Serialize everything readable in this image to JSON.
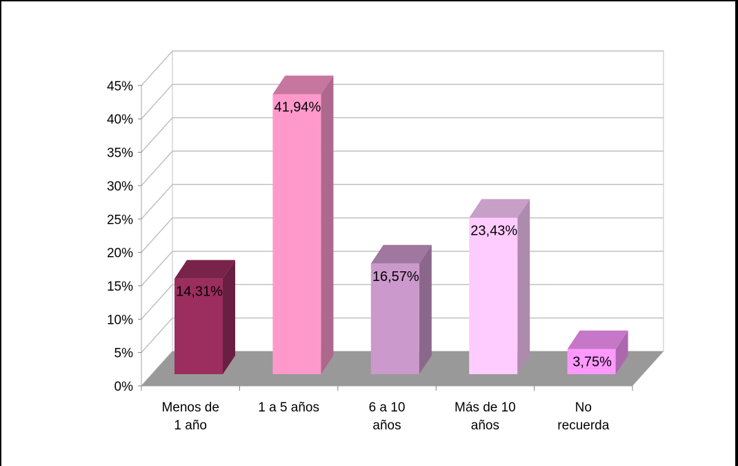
{
  "chart_data": {
    "type": "bar",
    "title": "",
    "xlabel": "",
    "ylabel": "",
    "ylim": [
      0,
      45
    ],
    "y_ticks": [
      "0%",
      "5%",
      "10%",
      "15%",
      "20%",
      "25%",
      "30%",
      "35%",
      "40%",
      "45%"
    ],
    "grid": true,
    "three_d": true,
    "categories": [
      [
        "Menos de",
        "1 año"
      ],
      [
        "1 a 5 años"
      ],
      [
        "6 a 10",
        "años"
      ],
      [
        "Más de 10",
        "años"
      ],
      [
        "No",
        "recuerda"
      ]
    ],
    "values": [
      14.31,
      41.94,
      16.57,
      23.43,
      3.75
    ],
    "data_labels": [
      "14,31%",
      "41,94%",
      "16,57%",
      "23,43%",
      "3,75%"
    ],
    "colors": [
      "#9b2d5f",
      "#ff99cc",
      "#cc99cc",
      "#ffccff",
      "#ff99ff"
    ],
    "floor_color": "#999999",
    "gridline_color": "#c0c0c0"
  }
}
